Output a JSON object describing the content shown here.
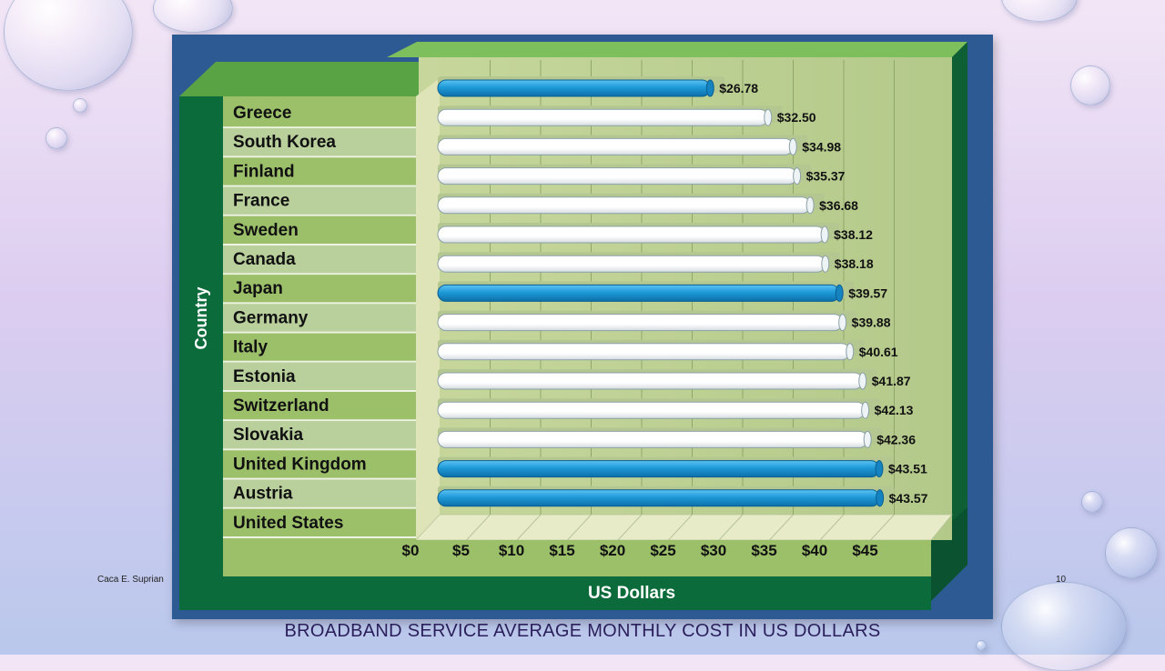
{
  "slide": {
    "title": "BROADBAND SERVICE AVERAGE MONTHLY COST IN US DOLLARS",
    "footer_left": "Caca E. Suprian",
    "page_number": "10"
  },
  "colors": {
    "background_top": "#f2e6f6",
    "background_bottom": "#b9c8ec",
    "frame": "#2e5a93",
    "dark_green": "#0b6b3a",
    "label_green": "#9cbf6a",
    "label_light": "#b9cf9c",
    "highlight_bar": "#1e9ad8",
    "plain_bar": "#ffffff",
    "caption_text": "#2a1f5a"
  },
  "chart_data": {
    "type": "bar",
    "orientation": "horizontal",
    "title": "",
    "xlabel": "US Dollars",
    "ylabel": "Country",
    "xlim": [
      0,
      45
    ],
    "xticks": [
      "$0",
      "$5",
      "$10",
      "$15",
      "$20",
      "$25",
      "$30",
      "$35",
      "$40",
      "$45"
    ],
    "categories": [
      "Greece",
      "South Korea",
      "Finland",
      "France",
      "Sweden",
      "Canada",
      "Japan",
      "Germany",
      "Italy",
      "Estonia",
      "Switzerland",
      "Slovakia",
      "United Kingdom",
      "Austria",
      "United States"
    ],
    "bar_values": [
      26.78,
      32.5,
      34.98,
      35.37,
      36.68,
      38.12,
      38.18,
      39.57,
      39.88,
      40.61,
      41.87,
      42.13,
      42.36,
      43.51,
      43.57
    ],
    "bar_labels": [
      "$26.78",
      "$32.50",
      "$34.98",
      "$35.37",
      "$36.68",
      "$38.12",
      "$38.18",
      "$39.57",
      "$39.88",
      "$40.61",
      "$41.87",
      "$42.13",
      "$42.36",
      "$43.51",
      "$43.57"
    ],
    "highlighted": [
      true,
      false,
      false,
      false,
      false,
      false,
      false,
      true,
      false,
      false,
      false,
      false,
      false,
      true,
      true
    ],
    "grid": true,
    "style": "3d"
  }
}
